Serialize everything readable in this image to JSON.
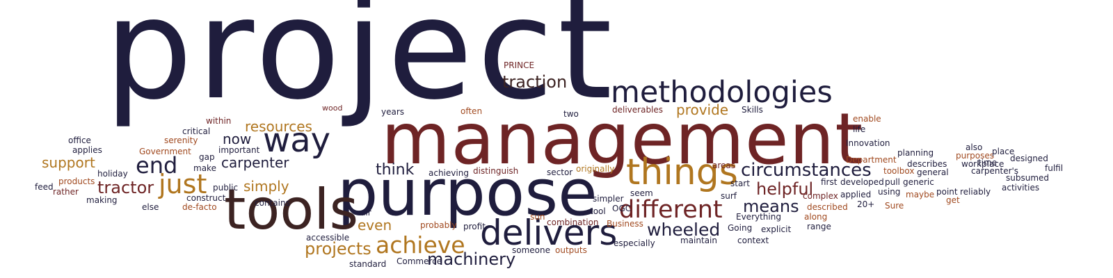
{
  "colors": {
    "navy": "#1f1d3d",
    "maroon": "#6e2425",
    "gold": "#b0761f",
    "darkbrown": "#3c2322",
    "rust": "#a0491f"
  },
  "words": [
    {
      "id": "project",
      "text": "project",
      "color": "navy"
    },
    {
      "id": "management",
      "text": "management",
      "color": "maroon"
    },
    {
      "id": "purpose",
      "text": "purpose",
      "color": "navy"
    },
    {
      "id": "tools",
      "text": "tools",
      "color": "darkbrown"
    },
    {
      "id": "methodologies",
      "text": "methodologies",
      "color": "navy"
    },
    {
      "id": "things",
      "text": "things",
      "color": "gold"
    },
    {
      "id": "delivers",
      "text": "delivers",
      "color": "navy"
    },
    {
      "id": "way",
      "text": "way",
      "color": "navy"
    },
    {
      "id": "different",
      "text": "different",
      "color": "maroon"
    },
    {
      "id": "achieve",
      "text": "achieve",
      "color": "gold"
    },
    {
      "id": "end",
      "text": "end",
      "color": "navy"
    },
    {
      "id": "just",
      "text": "just",
      "color": "gold"
    },
    {
      "id": "circumstances",
      "text": "circumstances",
      "color": "navy"
    },
    {
      "id": "traction",
      "text": "traction",
      "color": "darkbrown"
    },
    {
      "id": "tractor",
      "text": "tractor",
      "color": "maroon"
    },
    {
      "id": "wheeled",
      "text": "wheeled",
      "color": "navy"
    },
    {
      "id": "machinery",
      "text": "machinery",
      "color": "navy"
    },
    {
      "id": "projects",
      "text": "projects",
      "color": "gold"
    },
    {
      "id": "helpful",
      "text": "helpful",
      "color": "maroon"
    },
    {
      "id": "means",
      "text": "means",
      "color": "navy"
    },
    {
      "id": "resources",
      "text": "resources",
      "color": "gold"
    },
    {
      "id": "support",
      "text": "support",
      "color": "gold"
    },
    {
      "id": "carpenter",
      "text": "carpenter",
      "color": "navy"
    },
    {
      "id": "now",
      "text": "now",
      "color": "navy"
    },
    {
      "id": "provide",
      "text": "provide",
      "color": "gold"
    },
    {
      "id": "think",
      "text": "think",
      "color": "navy"
    },
    {
      "id": "simply",
      "text": "simply",
      "color": "gold"
    },
    {
      "id": "even",
      "text": "even",
      "color": "gold"
    },
    {
      "id": "prince",
      "text": "PRINCE",
      "color": "maroon"
    },
    {
      "id": "wood",
      "text": "wood",
      "color": "maroon"
    },
    {
      "id": "years",
      "text": "years",
      "color": "navy"
    },
    {
      "id": "often",
      "text": "often",
      "color": "rust"
    },
    {
      "id": "two",
      "text": "two",
      "color": "navy"
    },
    {
      "id": "deliverables",
      "text": "deliverables",
      "color": "maroon"
    },
    {
      "id": "skills",
      "text": "Skills",
      "color": "navy"
    },
    {
      "id": "enable",
      "text": "enable",
      "color": "rust"
    },
    {
      "id": "life",
      "text": "life",
      "color": "navy"
    },
    {
      "id": "within",
      "text": "within",
      "color": "maroon"
    },
    {
      "id": "critical",
      "text": "critical",
      "color": "navy"
    },
    {
      "id": "serenity",
      "text": "serenity",
      "color": "rust"
    },
    {
      "id": "office",
      "text": "office",
      "color": "navy"
    },
    {
      "id": "applies",
      "text": "applies",
      "color": "navy"
    },
    {
      "id": "government",
      "text": "Government",
      "color": "rust"
    },
    {
      "id": "gap",
      "text": "gap",
      "color": "navy"
    },
    {
      "id": "important",
      "text": "important",
      "color": "navy"
    },
    {
      "id": "make",
      "text": "make",
      "color": "navy"
    },
    {
      "id": "holiday",
      "text": "holiday",
      "color": "navy"
    },
    {
      "id": "products",
      "text": "products",
      "color": "rust"
    },
    {
      "id": "feed",
      "text": "feed",
      "color": "navy"
    },
    {
      "id": "rather",
      "text": "rather",
      "color": "maroon"
    },
    {
      "id": "making",
      "text": "making",
      "color": "navy"
    },
    {
      "id": "else",
      "text": "else",
      "color": "navy"
    },
    {
      "id": "public",
      "text": "public",
      "color": "navy"
    },
    {
      "id": "construct",
      "text": "construct",
      "color": "navy"
    },
    {
      "id": "defacto",
      "text": "de-facto",
      "color": "rust"
    },
    {
      "id": "contains",
      "text": "contains",
      "color": "navy"
    },
    {
      "id": "achieving",
      "text": "achieving",
      "color": "navy"
    },
    {
      "id": "distinguish",
      "text": "distinguish",
      "color": "maroon"
    },
    {
      "id": "sector",
      "text": "sector",
      "color": "navy"
    },
    {
      "id": "originally",
      "text": "originally",
      "color": "gold"
    },
    {
      "id": "innovation",
      "text": "Innovation",
      "color": "navy"
    },
    {
      "id": "department",
      "text": "Department",
      "color": "rust"
    },
    {
      "id": "areas",
      "text": "areas",
      "color": "maroon"
    },
    {
      "id": "planning",
      "text": "planning",
      "color": "navy"
    },
    {
      "id": "also",
      "text": "also",
      "color": "navy"
    },
    {
      "id": "purposes",
      "text": "purposes",
      "color": "rust"
    },
    {
      "id": "designed",
      "text": "designed",
      "color": "navy"
    },
    {
      "id": "place",
      "text": "place",
      "color": "navy"
    },
    {
      "id": "time",
      "text": "time",
      "color": "navy"
    },
    {
      "id": "describes",
      "text": "describes",
      "color": "navy"
    },
    {
      "id": "toolbox",
      "text": "toolbox",
      "color": "rust"
    },
    {
      "id": "general",
      "text": "general",
      "color": "navy"
    },
    {
      "id": "workplace",
      "text": "workplace",
      "color": "navy"
    },
    {
      "id": "carpenters",
      "text": "carpenter's",
      "color": "navy"
    },
    {
      "id": "fulfil",
      "text": "fulfil",
      "color": "navy"
    },
    {
      "id": "subsumed",
      "text": "subsumed",
      "color": "navy"
    },
    {
      "id": "activities",
      "text": "activities",
      "color": "navy"
    },
    {
      "id": "seem",
      "text": "seem",
      "color": "navy"
    },
    {
      "id": "start",
      "text": "start",
      "color": "navy"
    },
    {
      "id": "surf",
      "text": "surf",
      "color": "navy"
    },
    {
      "id": "first",
      "text": "first",
      "color": "navy"
    },
    {
      "id": "developed",
      "text": "developed",
      "color": "navy"
    },
    {
      "id": "pull",
      "text": "pull",
      "color": "navy"
    },
    {
      "id": "generic",
      "text": "generic",
      "color": "navy"
    },
    {
      "id": "complex",
      "text": "complex",
      "color": "maroon"
    },
    {
      "id": "applied",
      "text": "applied",
      "color": "navy"
    },
    {
      "id": "using",
      "text": "using",
      "color": "navy"
    },
    {
      "id": "maybe",
      "text": "maybe",
      "color": "rust"
    },
    {
      "id": "point",
      "text": "point",
      "color": "navy"
    },
    {
      "id": "reliably",
      "text": "reliably",
      "color": "navy"
    },
    {
      "id": "get",
      "text": "get",
      "color": "rust"
    },
    {
      "id": "twentyplus",
      "text": "20+",
      "color": "navy"
    },
    {
      "id": "sure",
      "text": "Sure",
      "color": "rust"
    },
    {
      "id": "described",
      "text": "described",
      "color": "rust"
    },
    {
      "id": "along",
      "text": "along",
      "color": "rust"
    },
    {
      "id": "range",
      "text": "range",
      "color": "navy"
    },
    {
      "id": "simpler",
      "text": "simpler",
      "color": "navy"
    },
    {
      "id": "ogc",
      "text": "OGC",
      "color": "navy"
    },
    {
      "id": "tool",
      "text": "tool",
      "color": "navy"
    },
    {
      "id": "air",
      "text": "air",
      "color": "navy"
    },
    {
      "id": "sun",
      "text": "sun",
      "color": "rust"
    },
    {
      "id": "probably",
      "text": "probably",
      "color": "rust"
    },
    {
      "id": "profit",
      "text": "profit",
      "color": "navy"
    },
    {
      "id": "combination",
      "text": "combination",
      "color": "maroon"
    },
    {
      "id": "business",
      "text": "Business",
      "color": "rust"
    },
    {
      "id": "everything",
      "text": "Everything",
      "color": "navy"
    },
    {
      "id": "going",
      "text": "Going",
      "color": "navy"
    },
    {
      "id": "explicit",
      "text": "explicit",
      "color": "navy"
    },
    {
      "id": "accessible",
      "text": "accessible",
      "color": "navy"
    },
    {
      "id": "especially",
      "text": "especially",
      "color": "navy"
    },
    {
      "id": "maintain",
      "text": "maintain",
      "color": "navy"
    },
    {
      "id": "context",
      "text": "context",
      "color": "navy"
    },
    {
      "id": "someone",
      "text": "someone",
      "color": "navy"
    },
    {
      "id": "outputs",
      "text": "outputs",
      "color": "rust"
    },
    {
      "id": "standard",
      "text": "standard",
      "color": "navy"
    },
    {
      "id": "commerce",
      "text": "Commerce",
      "color": "navy"
    }
  ]
}
